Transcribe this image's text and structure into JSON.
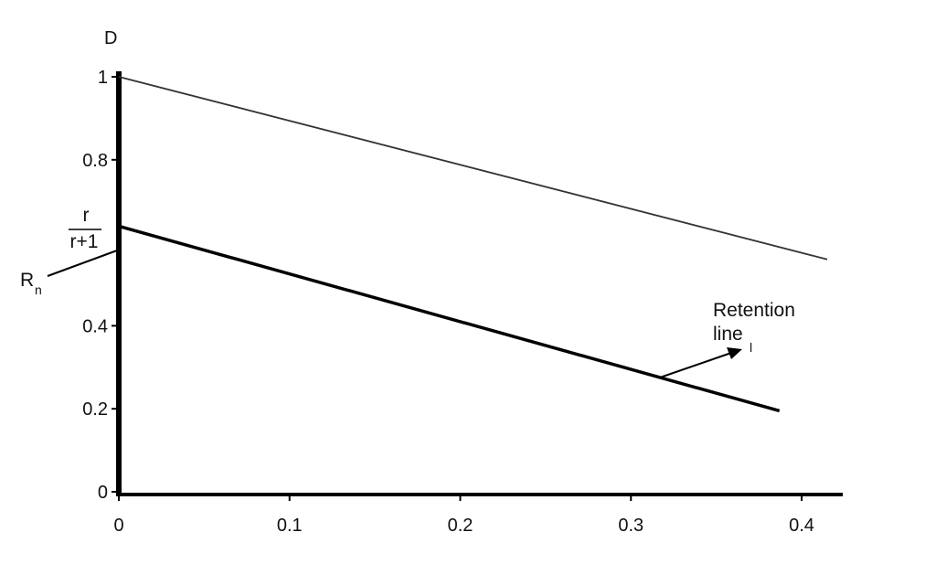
{
  "chart_data": {
    "type": "line",
    "title": "",
    "xlabel": "",
    "ylabel": "D",
    "xlim": [
      0,
      0.42
    ],
    "ylim": [
      0,
      1
    ],
    "x_ticks": [
      0,
      0.1,
      0.2,
      0.3,
      0.4
    ],
    "x_tick_labels": [
      "0",
      "0.1",
      "0.2",
      "0.3",
      "0.4"
    ],
    "y_ticks": [
      0,
      0.2,
      0.4,
      0.8,
      1
    ],
    "y_tick_labels": [
      "0",
      "0.2",
      "0.4",
      "0.8",
      "1"
    ],
    "grid": false,
    "series": [
      {
        "x": [
          0,
          0.415
        ],
        "y": [
          1.0,
          0.56
        ],
        "color": "#333333"
      },
      {
        "x": [
          0,
          0.387
        ],
        "y": [
          0.64,
          0.195
        ],
        "color": "#000000"
      }
    ],
    "annotations": {
      "fraction": {
        "numerator": "r",
        "denominator": "r+1",
        "y": 0.64
      },
      "rn_label": {
        "text": "R",
        "subscript": "n",
        "y": 0.58
      },
      "retention_label": {
        "line1": "Retention",
        "line2": "line",
        "subscript": "l",
        "arrow_to_x": 0.36,
        "arrow_to_y": 0.35
      }
    }
  }
}
